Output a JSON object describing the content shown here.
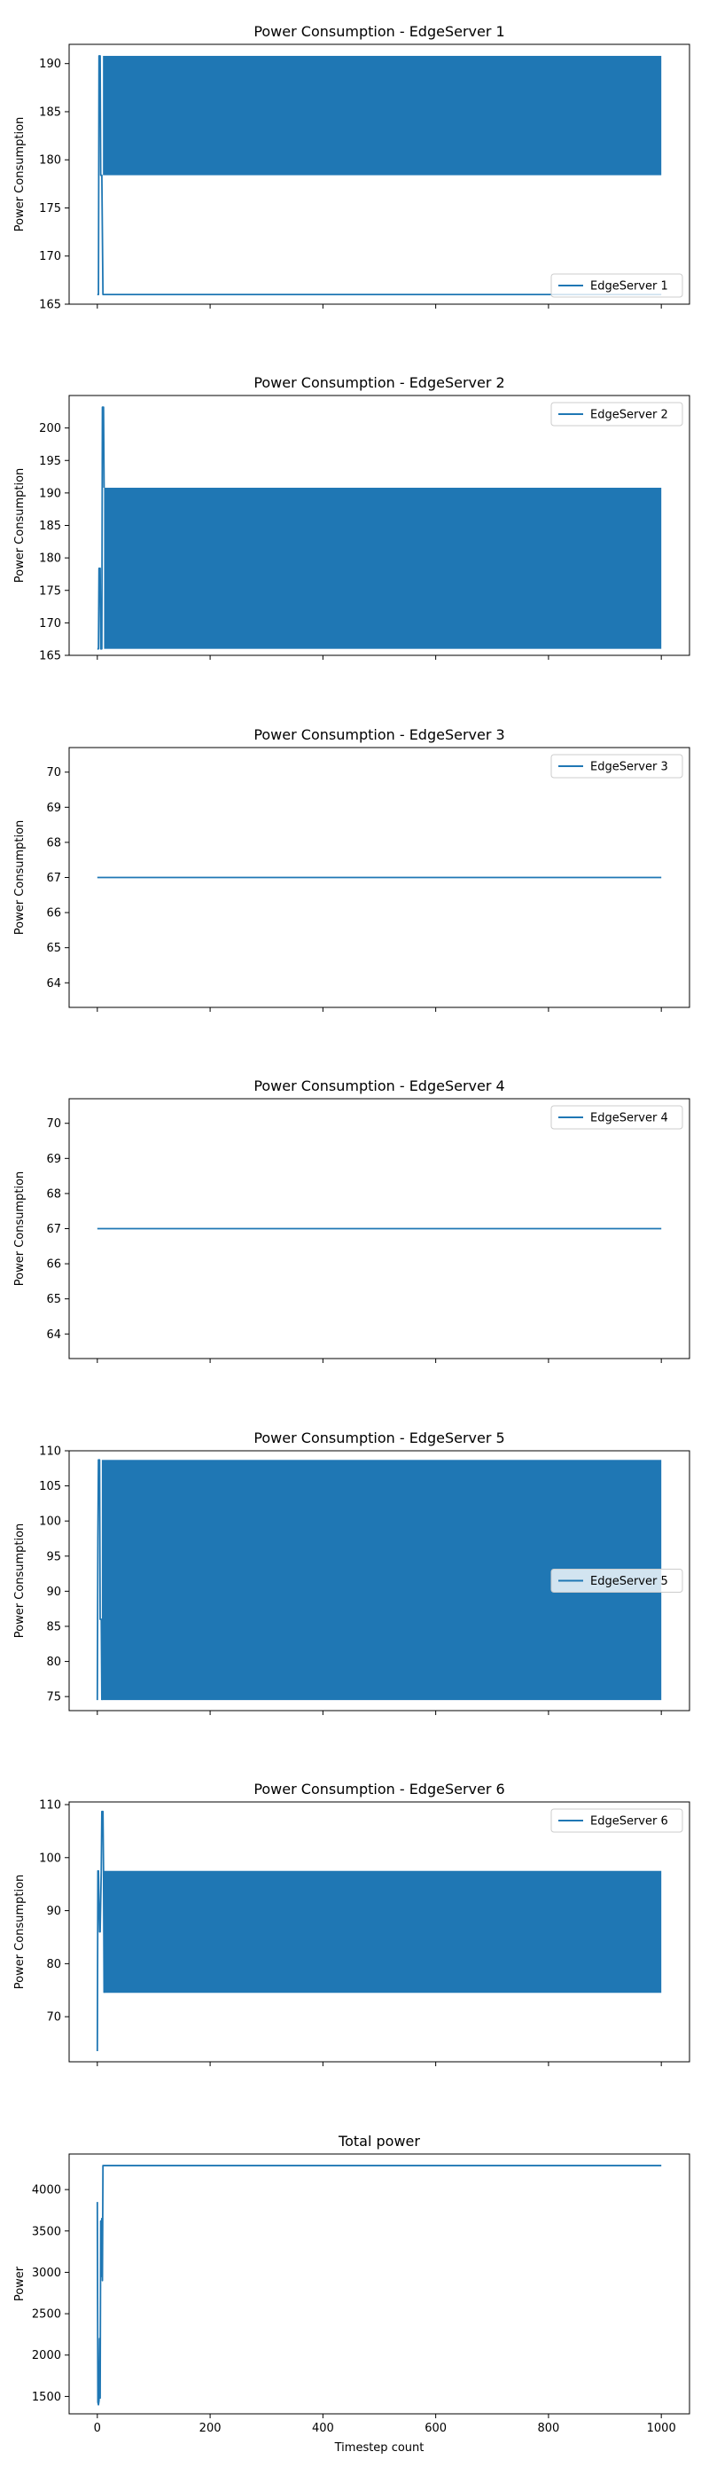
{
  "chart_data": [
    {
      "type": "line",
      "title": "Power Consumption - EdgeServer 1",
      "xlabel": "",
      "ylabel": "Power Consumption",
      "xlim": [
        -50,
        1050
      ],
      "ylim": [
        165,
        192
      ],
      "yticks": [
        165,
        170,
        175,
        180,
        185,
        190
      ],
      "xticks": [
        0,
        200,
        400,
        600,
        800,
        1000
      ],
      "show_xtick_labels": false,
      "legend": "lower right",
      "series": [
        {
          "name": "EdgeServer 1",
          "color": "#1f77b4",
          "x": [
            0,
            2,
            3,
            5,
            6,
            8,
            10,
            1000
          ],
          "y": [
            166,
            166,
            190.8,
            190.8,
            178.4,
            178.4,
            166,
            166
          ],
          "band": {
            "x_start": 10,
            "x_end": 1000,
            "low": 178.4,
            "high": 190.8
          }
        }
      ]
    },
    {
      "type": "line",
      "title": "Power Consumption - EdgeServer 2",
      "xlabel": "",
      "ylabel": "Power Consumption",
      "xlim": [
        -50,
        1050
      ],
      "ylim": [
        165,
        205
      ],
      "yticks": [
        165,
        170,
        175,
        180,
        185,
        190,
        195,
        200
      ],
      "xticks": [
        0,
        200,
        400,
        600,
        800,
        1000
      ],
      "show_xtick_labels": false,
      "legend": "upper right",
      "series": [
        {
          "name": "EdgeServer 2",
          "color": "#1f77b4",
          "x": [
            0,
            2,
            3,
            5,
            6,
            8,
            9,
            11,
            12
          ],
          "y": [
            166,
            166,
            178.4,
            178.4,
            166,
            166,
            203.2,
            203.2,
            190.8
          ],
          "band": {
            "x_start": 12,
            "x_end": 1000,
            "low": 166,
            "high": 190.8
          }
        }
      ]
    },
    {
      "type": "line",
      "title": "Power Consumption - EdgeServer 3",
      "xlabel": "",
      "ylabel": "Power Consumption",
      "xlim": [
        -50,
        1050
      ],
      "ylim": [
        63.3,
        70.7
      ],
      "yticks": [
        64,
        65,
        66,
        67,
        68,
        69,
        70
      ],
      "xticks": [
        0,
        200,
        400,
        600,
        800,
        1000
      ],
      "show_xtick_labels": false,
      "legend": "upper right",
      "series": [
        {
          "name": "EdgeServer 3",
          "color": "#1f77b4",
          "x": [
            0,
            1000
          ],
          "y": [
            67,
            67
          ]
        }
      ]
    },
    {
      "type": "line",
      "title": "Power Consumption - EdgeServer 4",
      "xlabel": "",
      "ylabel": "Power Consumption",
      "xlim": [
        -50,
        1050
      ],
      "ylim": [
        63.3,
        70.7
      ],
      "yticks": [
        64,
        65,
        66,
        67,
        68,
        69,
        70
      ],
      "xticks": [
        0,
        200,
        400,
        600,
        800,
        1000
      ],
      "show_xtick_labels": false,
      "legend": "upper right",
      "series": [
        {
          "name": "EdgeServer 4",
          "color": "#1f77b4",
          "x": [
            0,
            1000
          ],
          "y": [
            67,
            67
          ]
        }
      ]
    },
    {
      "type": "line",
      "title": "Power Consumption - EdgeServer 5",
      "xlabel": "",
      "ylabel": "Power Consumption",
      "xlim": [
        -50,
        1050
      ],
      "ylim": [
        73,
        110
      ],
      "yticks": [
        75,
        80,
        85,
        90,
        95,
        100,
        105,
        110
      ],
      "xticks": [
        0,
        200,
        400,
        600,
        800,
        1000
      ],
      "show_xtick_labels": false,
      "legend": "center right",
      "series": [
        {
          "name": "EdgeServer 5",
          "color": "#1f77b4",
          "x": [
            0,
            1,
            2,
            4,
            5,
            7,
            8
          ],
          "y": [
            74.5,
            97.5,
            108.7,
            108.7,
            86,
            86,
            74.5
          ],
          "band": {
            "x_start": 8,
            "x_end": 1000,
            "low": 74.5,
            "high": 108.7
          }
        }
      ]
    },
    {
      "type": "line",
      "title": "Power Consumption - EdgeServer 6",
      "xlabel": "",
      "ylabel": "Power Consumption",
      "xlim": [
        -50,
        1050
      ],
      "ylim": [
        61.5,
        110.5
      ],
      "yticks": [
        70,
        80,
        90,
        100,
        110
      ],
      "xticks": [
        0,
        200,
        400,
        600,
        800,
        1000
      ],
      "show_xtick_labels": false,
      "legend": "upper right",
      "series": [
        {
          "name": "EdgeServer 6",
          "color": "#1f77b4",
          "x": [
            0,
            1,
            2,
            4,
            5,
            7,
            8,
            10,
            11,
            12
          ],
          "y": [
            63.5,
            97.5,
            97.5,
            86,
            86,
            97.5,
            108.7,
            108.7,
            97.5,
            74.5
          ],
          "band": {
            "x_start": 12,
            "x_end": 1000,
            "low": 74.5,
            "high": 97.5
          }
        }
      ]
    },
    {
      "type": "line",
      "title": "Total power",
      "xlabel": "Timestep count",
      "ylabel": "Power",
      "xlim": [
        -50,
        1050
      ],
      "ylim": [
        1290,
        4430
      ],
      "yticks": [
        1500,
        2000,
        2500,
        3000,
        3500,
        4000
      ],
      "xticks": [
        0,
        200,
        400,
        600,
        800,
        1000
      ],
      "show_xtick_labels": true,
      "legend": "",
      "series": [
        {
          "name": "",
          "color": "#1f77b4",
          "x": [
            0,
            1,
            2,
            3,
            4,
            5,
            6,
            7,
            8,
            9,
            10,
            11,
            12,
            13,
            1000
          ],
          "y": [
            3850,
            1430,
            1400,
            1450,
            2200,
            1480,
            3620,
            2950,
            3650,
            2900,
            4290,
            4290,
            4290,
            4290,
            4290
          ]
        }
      ]
    }
  ]
}
